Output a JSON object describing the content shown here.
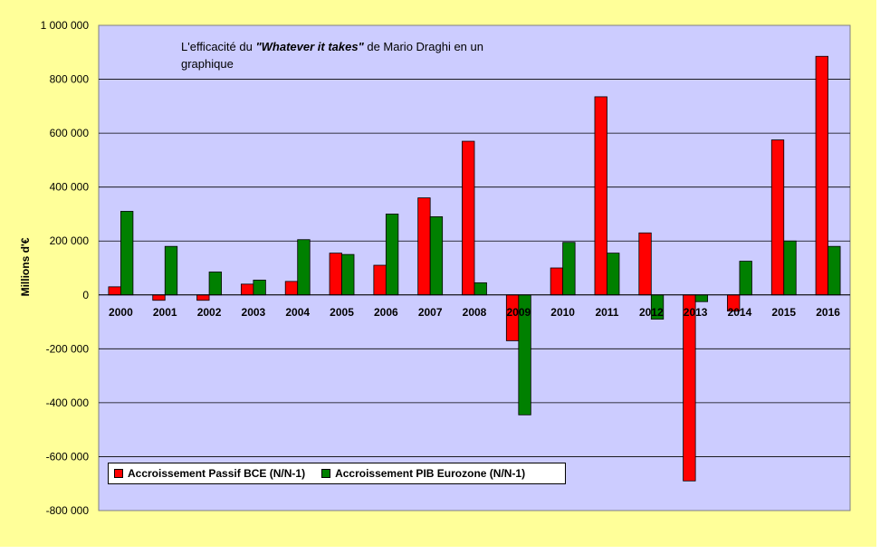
{
  "chart_data": {
    "type": "bar",
    "title": "",
    "annotation": {
      "prefix": "L'efficacité du ",
      "emphasis": "\"Whatever it takes\"",
      "suffix": " de Mario Draghi en un graphique"
    },
    "xlabel": "",
    "ylabel": "Millions d'€",
    "ylim": [
      -800000,
      1000000
    ],
    "yticks": [
      1000000,
      800000,
      600000,
      400000,
      200000,
      0,
      -200000,
      -400000,
      -600000,
      -800000
    ],
    "ytick_labels": [
      "1 000 000",
      "800 000",
      "600 000",
      "400 000",
      "200 000",
      "0",
      "-200 000",
      "-400 000",
      "-600 000",
      "-800 000"
    ],
    "categories": [
      "2000",
      "2001",
      "2002",
      "2003",
      "2004",
      "2005",
      "2006",
      "2007",
      "2008",
      "2009",
      "2010",
      "2011",
      "2012",
      "2013",
      "2014",
      "2015",
      "2016"
    ],
    "series": [
      {
        "name": "Accroissement Passif BCE (N/N-1)",
        "color": "#ff0000",
        "values": [
          30000,
          -20000,
          -20000,
          40000,
          50000,
          155000,
          110000,
          360000,
          570000,
          -170000,
          100000,
          735000,
          230000,
          -690000,
          -60000,
          575000,
          885000
        ]
      },
      {
        "name": "Accroissement PIB Eurozone (N/N-1)",
        "color": "#008000",
        "values": [
          310000,
          180000,
          85000,
          55000,
          205000,
          150000,
          300000,
          290000,
          45000,
          -445000,
          195000,
          155000,
          -90000,
          -25000,
          125000,
          200000,
          180000
        ]
      }
    ],
    "grid": true,
    "legend_position": "bottom-left",
    "colors": {
      "frame": "#ffff99",
      "plot": "#ccccff",
      "grid": "#000000"
    }
  }
}
